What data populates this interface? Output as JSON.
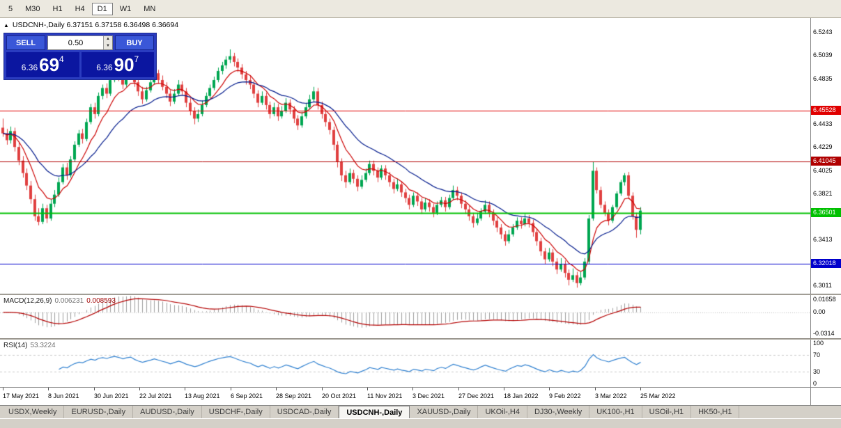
{
  "toolbar": {
    "items": [
      "5",
      "M30",
      "H1",
      "H4",
      "D1",
      "W1",
      "MN"
    ],
    "active": "D1"
  },
  "symbol_header": {
    "text": "USDCNH-,Daily  6.37151 6.37158 6.36498 6.36694"
  },
  "one_click": {
    "collapse_icon": "▲",
    "sell_label": "SELL",
    "buy_label": "BUY",
    "volume": "0.50",
    "sell_price_prefix": "6.36",
    "sell_price_big": "69",
    "sell_price_sup": "4",
    "buy_price_prefix": "6.36",
    "buy_price_big": "90",
    "buy_price_sup": "7"
  },
  "macd": {
    "title": "MACD(12,26,9)",
    "main_value": "0.006231",
    "signal_value": "0.008593",
    "scale": [
      "0.01658",
      "0.00",
      "-0.0314"
    ]
  },
  "rsi": {
    "title": "RSI(14)",
    "value": "53.3224",
    "scale": [
      100,
      70,
      30,
      0
    ],
    "levels": [
      70,
      30
    ]
  },
  "tabs": {
    "items": [
      "USDX,Weekly",
      "EURUSD-,Daily",
      "AUDUSD-,Daily",
      "USDCHF-,Daily",
      "USDCAD-,Daily",
      "USDCNH-,Daily",
      "XAUUSD-,Daily",
      "UKOil-,H4",
      "DJ30-,Weekly",
      "UK100-,H1",
      "USOil-,H1",
      "HK50-,H1"
    ],
    "active": "USDCNH-,Daily"
  },
  "chart_data": {
    "type": "candlestick",
    "symbol": "USDCNH-",
    "timeframe": "Daily",
    "current_bar": {
      "open": 6.37151,
      "high": 6.37158,
      "low": 6.36498,
      "close": 6.36694
    },
    "bid": 6.36694,
    "ask": 6.36907,
    "ylim": [
      6.2937,
      6.5366
    ],
    "colors": {
      "up": "#00a651",
      "down": "#e04040"
    },
    "moving_averages": [
      {
        "type": "ema",
        "period": 8,
        "color": "#cc0000"
      },
      {
        "type": "ema",
        "period": 21,
        "color": "#001a8c"
      }
    ],
    "y_axis_ticks": [
      {
        "text": "6.5243",
        "price": 6.5243
      },
      {
        "text": "6.5039",
        "price": 6.5039
      },
      {
        "text": "6.4835",
        "price": 6.4835
      },
      {
        "text": "6.4433",
        "price": 6.4433
      },
      {
        "text": "6.4229",
        "price": 6.4229
      },
      {
        "text": "6.4025",
        "price": 6.4025
      },
      {
        "text": "6.3821",
        "price": 6.3821
      },
      {
        "text": "6.3413",
        "price": 6.3413
      },
      {
        "text": "6.3011",
        "price": 6.3011
      }
    ],
    "horizontal_lines": [
      {
        "text": "6.45528",
        "price": 6.45528,
        "color": "#e00000",
        "width": 1
      },
      {
        "text": "6.41045",
        "price": 6.41045,
        "color": "#b00000",
        "width": 1
      },
      {
        "text": "6.36501",
        "price": 6.36501,
        "color": "#00c000",
        "width": 2
      },
      {
        "text": "6.32018",
        "price": 6.32018,
        "color": "#0000cc",
        "width": 1
      }
    ],
    "x_axis_labels": [
      "17 May 2021",
      "8 Jun 2021",
      "30 Jun 2021",
      "22 Jul 2021",
      "13 Aug 2021",
      "6 Sep 2021",
      "28 Sep 2021",
      "20 Oct 2021",
      "11 Nov 2021",
      "3 Dec 2021",
      "27 Dec 2021",
      "18 Jan 2022",
      "9 Feb 2022",
      "3 Mar 2022",
      "25 Mar 2022"
    ],
    "indicators": [
      {
        "name": "MACD",
        "params": [
          12,
          26,
          9
        ],
        "main": 0.006231,
        "signal": 0.008593
      },
      {
        "name": "RSI",
        "params": [
          14
        ],
        "value": 53.3224
      }
    ],
    "ohlc": [
      [
        6.44,
        6.448,
        6.432,
        6.435
      ],
      [
        6.435,
        6.439,
        6.425,
        6.429
      ],
      [
        6.429,
        6.441,
        6.426,
        6.437
      ],
      [
        6.437,
        6.44,
        6.419,
        6.423
      ],
      [
        6.423,
        6.427,
        6.407,
        6.411
      ],
      [
        6.411,
        6.415,
        6.396,
        6.4
      ],
      [
        6.4,
        6.404,
        6.385,
        6.389
      ],
      [
        6.389,
        6.393,
        6.373,
        6.377
      ],
      [
        6.377,
        6.381,
        6.358,
        6.362
      ],
      [
        6.362,
        6.369,
        6.354,
        6.357
      ],
      [
        6.357,
        6.373,
        6.355,
        6.369
      ],
      [
        6.369,
        6.372,
        6.356,
        6.36
      ],
      [
        6.36,
        6.377,
        6.358,
        6.373
      ],
      [
        6.373,
        6.385,
        6.37,
        6.381
      ],
      [
        6.381,
        6.396,
        6.379,
        6.392
      ],
      [
        6.392,
        6.408,
        6.39,
        6.405
      ],
      [
        6.405,
        6.409,
        6.394,
        6.398
      ],
      [
        6.398,
        6.415,
        6.396,
        6.412
      ],
      [
        6.412,
        6.428,
        6.41,
        6.425
      ],
      [
        6.425,
        6.438,
        6.423,
        6.435
      ],
      [
        6.435,
        6.439,
        6.426,
        6.43
      ],
      [
        6.43,
        6.448,
        6.428,
        6.445
      ],
      [
        6.445,
        6.461,
        6.443,
        6.458
      ],
      [
        6.458,
        6.462,
        6.448,
        6.452
      ],
      [
        6.452,
        6.471,
        6.45,
        6.468
      ],
      [
        6.468,
        6.478,
        6.465,
        6.475
      ],
      [
        6.475,
        6.479,
        6.466,
        6.47
      ],
      [
        6.47,
        6.485,
        6.468,
        6.482
      ],
      [
        6.482,
        6.493,
        6.48,
        6.49
      ],
      [
        6.49,
        6.494,
        6.481,
        6.485
      ],
      [
        6.485,
        6.489,
        6.474,
        6.478
      ],
      [
        6.478,
        6.489,
        6.476,
        6.486
      ],
      [
        6.486,
        6.496,
        6.484,
        6.492
      ],
      [
        6.492,
        6.495,
        6.476,
        6.48
      ],
      [
        6.48,
        6.484,
        6.468,
        6.472
      ],
      [
        6.472,
        6.476,
        6.461,
        6.465
      ],
      [
        6.465,
        6.476,
        6.463,
        6.473
      ],
      [
        6.473,
        6.484,
        6.471,
        6.48
      ],
      [
        6.48,
        6.491,
        6.478,
        6.488
      ],
      [
        6.488,
        6.491,
        6.479,
        6.482
      ],
      [
        6.482,
        6.486,
        6.473,
        6.476
      ],
      [
        6.476,
        6.48,
        6.466,
        6.47
      ],
      [
        6.47,
        6.473,
        6.459,
        6.463
      ],
      [
        6.463,
        6.474,
        6.461,
        6.47
      ],
      [
        6.47,
        6.482,
        6.468,
        6.478
      ],
      [
        6.478,
        6.481,
        6.469,
        6.472
      ],
      [
        6.472,
        6.475,
        6.458,
        6.462
      ],
      [
        6.462,
        6.466,
        6.451,
        6.455
      ],
      [
        6.455,
        6.458,
        6.443,
        6.448
      ],
      [
        6.448,
        6.456,
        6.445,
        6.452
      ],
      [
        6.452,
        6.464,
        6.45,
        6.46
      ],
      [
        6.46,
        6.471,
        6.458,
        6.468
      ],
      [
        6.468,
        6.478,
        6.466,
        6.475
      ],
      [
        6.475,
        6.485,
        6.473,
        6.482
      ],
      [
        6.482,
        6.493,
        6.48,
        6.49
      ],
      [
        6.49,
        6.498,
        6.487,
        6.495
      ],
      [
        6.495,
        6.503,
        6.492,
        6.5
      ],
      [
        6.5,
        6.509,
        6.497,
        6.503
      ],
      [
        6.503,
        6.506,
        6.494,
        6.498
      ],
      [
        6.498,
        6.501,
        6.489,
        6.493
      ],
      [
        6.493,
        6.496,
        6.483,
        6.487
      ],
      [
        6.487,
        6.49,
        6.478,
        6.482
      ],
      [
        6.482,
        6.486,
        6.474,
        6.478
      ],
      [
        6.478,
        6.481,
        6.466,
        6.47
      ],
      [
        6.47,
        6.473,
        6.458,
        6.462
      ],
      [
        6.462,
        6.472,
        6.46,
        6.468
      ],
      [
        6.468,
        6.471,
        6.456,
        6.46
      ],
      [
        6.46,
        6.463,
        6.448,
        6.452
      ],
      [
        6.452,
        6.462,
        6.45,
        6.458
      ],
      [
        6.458,
        6.461,
        6.446,
        6.45
      ],
      [
        6.45,
        6.459,
        6.448,
        6.455
      ],
      [
        6.455,
        6.466,
        6.453,
        6.462
      ],
      [
        6.462,
        6.465,
        6.452,
        6.456
      ],
      [
        6.456,
        6.459,
        6.444,
        6.448
      ],
      [
        6.448,
        6.451,
        6.438,
        6.442
      ],
      [
        6.442,
        6.454,
        6.44,
        6.45
      ],
      [
        6.45,
        6.462,
        6.448,
        6.458
      ],
      [
        6.458,
        6.469,
        6.456,
        6.465
      ],
      [
        6.465,
        6.476,
        6.463,
        6.472
      ],
      [
        6.472,
        6.475,
        6.456,
        6.46
      ],
      [
        6.46,
        6.463,
        6.448,
        6.452
      ],
      [
        6.452,
        6.455,
        6.441,
        6.445
      ],
      [
        6.445,
        6.448,
        6.434,
        6.438
      ],
      [
        6.438,
        6.441,
        6.42,
        6.425
      ],
      [
        6.425,
        6.428,
        6.405,
        6.41
      ],
      [
        6.41,
        6.413,
        6.393,
        6.398
      ],
      [
        6.398,
        6.402,
        6.387,
        6.392
      ],
      [
        6.392,
        6.404,
        6.39,
        6.4
      ],
      [
        6.4,
        6.403,
        6.391,
        6.395
      ],
      [
        6.395,
        6.398,
        6.384,
        6.388
      ],
      [
        6.388,
        6.398,
        6.386,
        6.394
      ],
      [
        6.394,
        6.404,
        6.392,
        6.4
      ],
      [
        6.4,
        6.411,
        6.398,
        6.408
      ],
      [
        6.408,
        6.411,
        6.398,
        6.402
      ],
      [
        6.402,
        6.405,
        6.392,
        6.396
      ],
      [
        6.396,
        6.407,
        6.394,
        6.404
      ],
      [
        6.404,
        6.407,
        6.394,
        6.398
      ],
      [
        6.398,
        6.401,
        6.388,
        6.392
      ],
      [
        6.392,
        6.395,
        6.382,
        6.386
      ],
      [
        6.386,
        6.395,
        6.384,
        6.39
      ],
      [
        6.39,
        6.393,
        6.379,
        6.383
      ],
      [
        6.383,
        6.386,
        6.374,
        6.378
      ],
      [
        6.378,
        6.381,
        6.368,
        6.372
      ],
      [
        6.372,
        6.383,
        6.37,
        6.38
      ],
      [
        6.38,
        6.383,
        6.371,
        6.375
      ],
      [
        6.375,
        6.378,
        6.364,
        6.368
      ],
      [
        6.368,
        6.378,
        6.366,
        6.374
      ],
      [
        6.374,
        6.377,
        6.366,
        6.37
      ],
      [
        6.37,
        6.373,
        6.361,
        6.365
      ],
      [
        6.365,
        6.375,
        6.363,
        6.372
      ],
      [
        6.372,
        6.379,
        6.37,
        6.376
      ],
      [
        6.376,
        6.379,
        6.366,
        6.37
      ],
      [
        6.37,
        6.381,
        6.368,
        6.378
      ],
      [
        6.378,
        6.389,
        6.376,
        6.385
      ],
      [
        6.385,
        6.388,
        6.376,
        6.38
      ],
      [
        6.38,
        6.383,
        6.369,
        6.373
      ],
      [
        6.373,
        6.376,
        6.364,
        6.368
      ],
      [
        6.368,
        6.371,
        6.358,
        6.362
      ],
      [
        6.362,
        6.365,
        6.352,
        6.356
      ],
      [
        6.356,
        6.365,
        6.354,
        6.36
      ],
      [
        6.36,
        6.369,
        6.358,
        6.366
      ],
      [
        6.366,
        6.376,
        6.364,
        6.372
      ],
      [
        6.372,
        6.375,
        6.361,
        6.365
      ],
      [
        6.365,
        6.368,
        6.354,
        6.358
      ],
      [
        6.358,
        6.361,
        6.348,
        6.352
      ],
      [
        6.352,
        6.355,
        6.342,
        6.346
      ],
      [
        6.346,
        6.349,
        6.336,
        6.34
      ],
      [
        6.34,
        6.35,
        6.338,
        6.346
      ],
      [
        6.346,
        6.355,
        6.344,
        6.352
      ],
      [
        6.352,
        6.361,
        6.35,
        6.358
      ],
      [
        6.358,
        6.361,
        6.351,
        6.355
      ],
      [
        6.355,
        6.364,
        6.353,
        6.36
      ],
      [
        6.36,
        6.363,
        6.352,
        6.356
      ],
      [
        6.356,
        6.359,
        6.344,
        6.348
      ],
      [
        6.348,
        6.351,
        6.336,
        6.34
      ],
      [
        6.34,
        6.343,
        6.327,
        6.331
      ],
      [
        6.331,
        6.334,
        6.32,
        6.324
      ],
      [
        6.324,
        6.334,
        6.322,
        6.33
      ],
      [
        6.33,
        6.333,
        6.318,
        6.322
      ],
      [
        6.322,
        6.325,
        6.311,
        6.315
      ],
      [
        6.315,
        6.325,
        6.313,
        6.32
      ],
      [
        6.32,
        6.323,
        6.308,
        6.312
      ],
      [
        6.312,
        6.315,
        6.301,
        6.306
      ],
      [
        6.306,
        6.316,
        6.304,
        6.31
      ],
      [
        6.31,
        6.313,
        6.299,
        6.303
      ],
      [
        6.303,
        6.313,
        6.301,
        6.308
      ],
      [
        6.308,
        6.325,
        6.306,
        6.322
      ],
      [
        6.322,
        6.363,
        6.32,
        6.36
      ],
      [
        6.36,
        6.41,
        6.358,
        6.402
      ],
      [
        6.402,
        6.405,
        6.382,
        6.385
      ],
      [
        6.385,
        6.388,
        6.369,
        6.372
      ],
      [
        6.372,
        6.375,
        6.362,
        6.365
      ],
      [
        6.365,
        6.368,
        6.354,
        6.358
      ],
      [
        6.358,
        6.372,
        6.356,
        6.37
      ],
      [
        6.37,
        6.384,
        6.368,
        6.382
      ],
      [
        6.382,
        6.394,
        6.38,
        6.392
      ],
      [
        6.392,
        6.4,
        6.389,
        6.398
      ],
      [
        6.398,
        6.401,
        6.377,
        6.38
      ],
      [
        6.38,
        6.383,
        6.359,
        6.362
      ],
      [
        6.362,
        6.365,
        6.343,
        6.35
      ],
      [
        6.35,
        6.37,
        6.346,
        6.3669
      ]
    ]
  }
}
